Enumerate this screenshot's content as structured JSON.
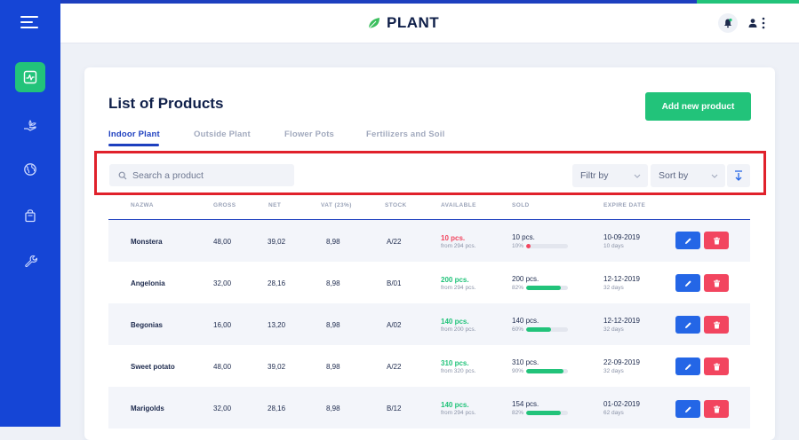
{
  "app": {
    "logo_text": "PLANT"
  },
  "page": {
    "title": "List of Products",
    "add_button": "Add new product"
  },
  "tabs": [
    {
      "label": "Indoor Plant",
      "active": true
    },
    {
      "label": "Outside Plant",
      "active": false
    },
    {
      "label": "Flower Pots",
      "active": false
    },
    {
      "label": "Fertilizers and Soil",
      "active": false
    }
  ],
  "toolbar": {
    "search_placeholder": "Search a product",
    "filter_label": "Filtr by",
    "sort_label": "Sort by"
  },
  "columns": [
    "NAZWA",
    "GROSS",
    "NET",
    "VAT (23%)",
    "STOCK",
    "AVAILABLE",
    "SOLD",
    "EXPIRE DATE"
  ],
  "products": [
    {
      "name": "Monstera",
      "gross": "48,00",
      "net": "39,02",
      "vat": "8,98",
      "stock": "A/22",
      "available": "10 pcs.",
      "available_from": "from 294 pcs.",
      "available_status": "low",
      "sold": "10 pcs.",
      "sold_pct": "10%",
      "sold_fraction": 0.1,
      "expire": "10-09-2019",
      "expire_days": "10 days"
    },
    {
      "name": "Angelonia",
      "gross": "32,00",
      "net": "28,16",
      "vat": "8,98",
      "stock": "B/01",
      "available": "200 pcs.",
      "available_from": "from 294 pcs.",
      "available_status": "ok",
      "sold": "200 pcs.",
      "sold_pct": "82%",
      "sold_fraction": 0.82,
      "expire": "12-12-2019",
      "expire_days": "32 days"
    },
    {
      "name": "Begonias",
      "gross": "16,00",
      "net": "13,20",
      "vat": "8,98",
      "stock": "A/02",
      "available": "140 pcs.",
      "available_from": "from 200 pcs.",
      "available_status": "ok",
      "sold": "140 pcs.",
      "sold_pct": "60%",
      "sold_fraction": 0.6,
      "expire": "12-12-2019",
      "expire_days": "32 days"
    },
    {
      "name": "Sweet potato",
      "gross": "48,00",
      "net": "39,02",
      "vat": "8,98",
      "stock": "A/22",
      "available": "310 pcs.",
      "available_from": "from 320 pcs.",
      "available_status": "ok",
      "sold": "310 pcs.",
      "sold_pct": "90%",
      "sold_fraction": 0.9,
      "expire": "22-09-2019",
      "expire_days": "32 days"
    },
    {
      "name": "Marigolds",
      "gross": "32,00",
      "net": "28,16",
      "vat": "8,98",
      "stock": "B/12",
      "available": "140 pcs.",
      "available_from": "from 294 pcs.",
      "available_status": "ok",
      "sold": "154 pcs.",
      "sold_pct": "82%",
      "sold_fraction": 0.82,
      "expire": "01-02-2019",
      "expire_days": "62 days"
    }
  ],
  "colors": {
    "accent_green": "#22c37a",
    "primary_blue": "#1d3fbf",
    "sidebar_blue": "#1545d6",
    "danger_red": "#f2455f",
    "low_stock_red": "#f2455f",
    "highlight_frame": "#e0212b"
  },
  "icons": {
    "sidebar": [
      "menu-icon",
      "analytics-icon",
      "hand-plant-icon",
      "globe-icon",
      "shopping-bag-icon",
      "wrench-icon"
    ],
    "header": [
      "leaf-logo-icon",
      "bell-icon",
      "user-icon",
      "more-vertical-icon"
    ],
    "toolbar": [
      "search-icon",
      "chevron-down-icon",
      "sort-down-icon"
    ],
    "row_actions": [
      "pencil-icon",
      "trash-icon"
    ]
  }
}
